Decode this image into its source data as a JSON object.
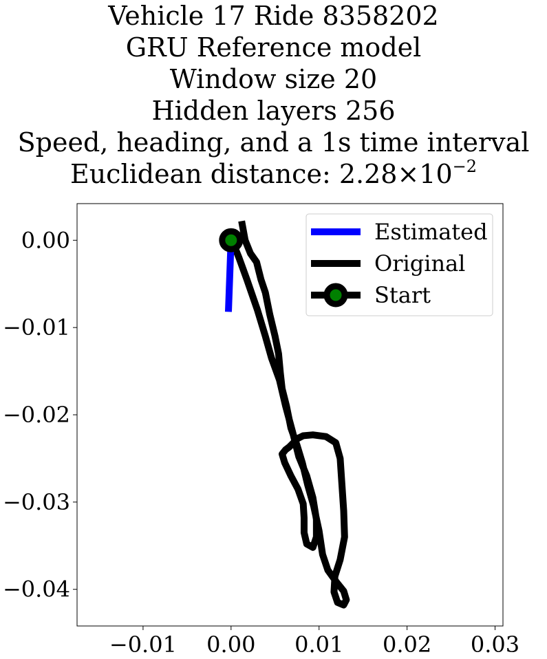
{
  "title_lines": [
    "Vehicle 17 Ride 8358202",
    "GRU Reference model",
    "Window size 20",
    "Hidden layers 256",
    "Speed, heading, and a 1s time interval"
  ],
  "title_distance": {
    "prefix": "Euclidean distance: ",
    "mantissa": "2.28",
    "times": "×",
    "base": "10",
    "exponent": "−2"
  },
  "chart_data": {
    "type": "line",
    "xlim": [
      -0.0175,
      0.0309
    ],
    "ylim": [
      -0.0442,
      0.0042
    ],
    "xticks": [
      -0.01,
      0.0,
      0.01,
      0.02,
      0.03
    ],
    "xtick_labels": [
      "−0.01",
      "0.00",
      "0.01",
      "0.02",
      "0.03"
    ],
    "yticks": [
      0.0,
      -0.01,
      -0.02,
      -0.03,
      -0.04
    ],
    "ytick_labels": [
      "0.00",
      "−0.01",
      "−0.02",
      "−0.03",
      "−0.04"
    ],
    "grid": false,
    "legend_position": "upper right",
    "series": [
      {
        "name": "Estimated",
        "color": "#0000ff",
        "points": [
          [
            0.0,
            0.0
          ],
          [
            -0.0003,
            -0.0082
          ]
        ]
      },
      {
        "name": "Original",
        "color": "#000000",
        "points": [
          [
            0.0012,
            0.0022
          ],
          [
            0.0016,
            0.0
          ],
          [
            0.0022,
            -0.0015
          ],
          [
            0.0029,
            -0.0025
          ],
          [
            0.0034,
            -0.0045
          ],
          [
            0.0039,
            -0.006
          ],
          [
            0.0044,
            -0.0085
          ],
          [
            0.005,
            -0.011
          ],
          [
            0.0054,
            -0.013
          ],
          [
            0.0056,
            -0.0152
          ],
          [
            0.0058,
            -0.017
          ],
          [
            0.0063,
            -0.019
          ],
          [
            0.0068,
            -0.0215
          ],
          [
            0.0075,
            -0.0235
          ],
          [
            0.0081,
            -0.0255
          ],
          [
            0.0087,
            -0.028
          ],
          [
            0.0094,
            -0.0305
          ],
          [
            0.01,
            -0.0333
          ],
          [
            0.0104,
            -0.036
          ],
          [
            0.011,
            -0.0378
          ],
          [
            0.012,
            -0.0392
          ],
          [
            0.0128,
            -0.0402
          ],
          [
            0.0131,
            -0.0412
          ],
          [
            0.0128,
            -0.0418
          ],
          [
            0.0121,
            -0.0415
          ],
          [
            0.0117,
            -0.0403
          ],
          [
            0.0118,
            -0.0385
          ],
          [
            0.0124,
            -0.0366
          ],
          [
            0.0129,
            -0.034
          ],
          [
            0.0128,
            -0.031
          ],
          [
            0.0126,
            -0.028
          ],
          [
            0.0124,
            -0.025
          ],
          [
            0.0119,
            -0.0232
          ],
          [
            0.0108,
            -0.0225
          ],
          [
            0.0093,
            -0.0223
          ],
          [
            0.0082,
            -0.0224
          ],
          [
            0.0076,
            -0.0227
          ],
          [
            0.0071,
            -0.0232
          ],
          [
            0.0066,
            -0.0237
          ],
          [
            0.0062,
            -0.024
          ],
          [
            0.0058,
            -0.0245
          ],
          [
            0.0061,
            -0.0255
          ],
          [
            0.0068,
            -0.027
          ],
          [
            0.0076,
            -0.0285
          ],
          [
            0.0082,
            -0.0302
          ],
          [
            0.0083,
            -0.0318
          ],
          [
            0.0083,
            -0.0335
          ],
          [
            0.0086,
            -0.0348
          ],
          [
            0.0093,
            -0.0352
          ],
          [
            0.0097,
            -0.034
          ],
          [
            0.0097,
            -0.032
          ],
          [
            0.0093,
            -0.0295
          ],
          [
            0.0086,
            -0.027
          ],
          [
            0.0077,
            -0.0248
          ],
          [
            0.007,
            -0.022
          ],
          [
            0.0062,
            -0.019
          ],
          [
            0.0055,
            -0.016
          ],
          [
            0.0046,
            -0.0135
          ],
          [
            0.0039,
            -0.011
          ],
          [
            0.003,
            -0.008
          ],
          [
            0.0018,
            -0.0045
          ],
          [
            0.0009,
            -0.002
          ],
          [
            0.0003,
            -0.0005
          ],
          [
            0.0,
            0.0
          ]
        ]
      },
      {
        "name": "Start",
        "color": "#000000",
        "marker_face": "#008000",
        "points": [
          [
            0.0,
            0.0
          ]
        ]
      }
    ]
  }
}
